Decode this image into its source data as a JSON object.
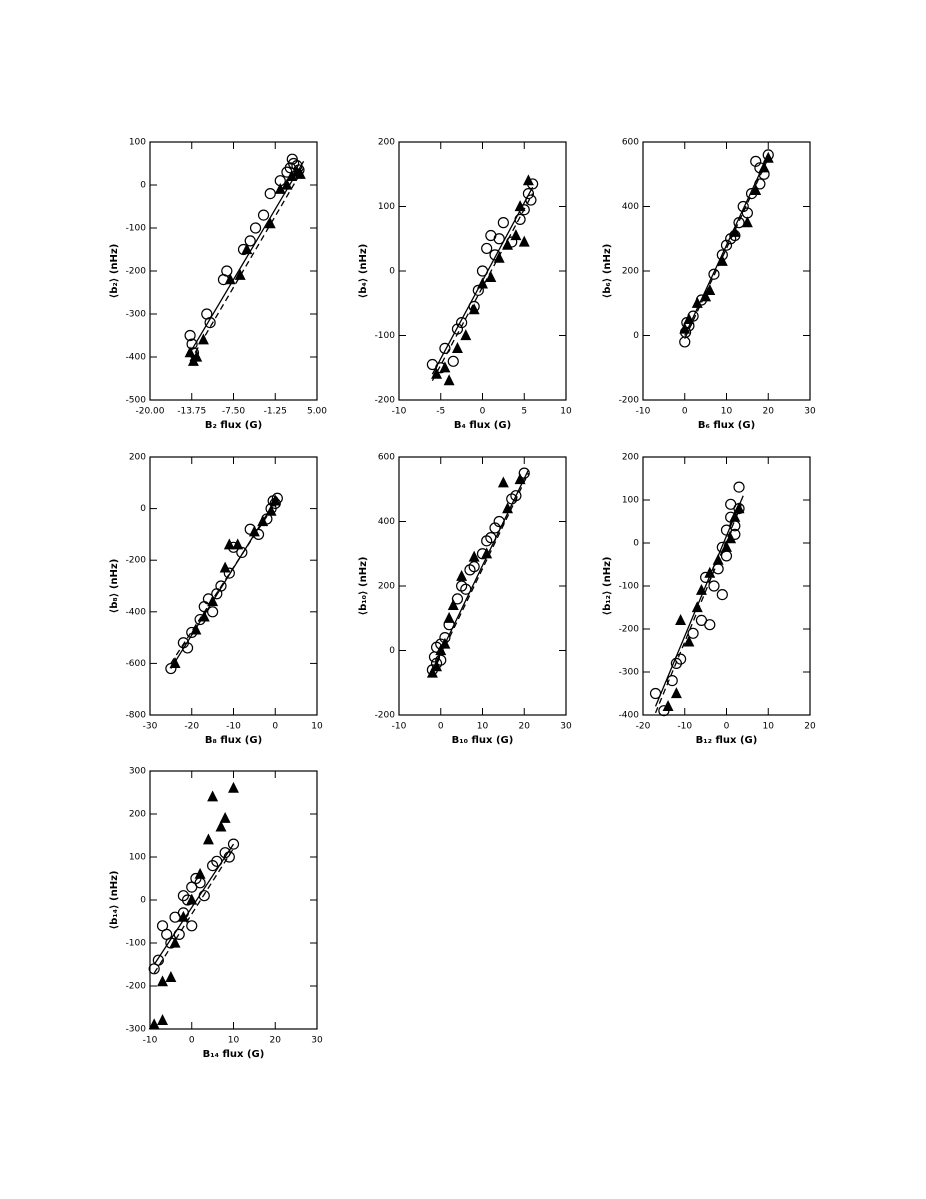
{
  "chart_data": [
    {
      "type": "scatter",
      "xlabel": "B₂ flux (G)",
      "ylabel": "⟨b₂⟩ (nHz)",
      "color": "#000000",
      "xlim": [
        -20,
        5
      ],
      "ylim": [
        -500,
        100
      ],
      "xticks": [
        {
          "value": -20,
          "label": "-20.00"
        },
        {
          "value": -13.75,
          "label": "-13.75"
        },
        {
          "value": -7.5,
          "label": "-7.50"
        },
        {
          "value": -1.25,
          "label": "-1.25"
        },
        {
          "value": 5,
          "label": "5.00"
        }
      ],
      "yticks": [
        -500,
        -400,
        -300,
        -200,
        -100,
        0,
        100
      ],
      "series": [
        {
          "marker": "circle",
          "x": [
            -14,
            -13.7,
            -13.5,
            -11.5,
            -11,
            -9,
            -8.5,
            -6,
            -5,
            -4.2,
            -3,
            -2,
            -0.5,
            0.5,
            1,
            1.5,
            2,
            1.3,
            2.3
          ],
          "values": [
            -350,
            -370,
            -390,
            -300,
            -320,
            -220,
            -200,
            -150,
            -130,
            -100,
            -70,
            -20,
            10,
            30,
            40,
            50,
            45,
            60,
            35
          ]
        },
        {
          "marker": "triangle",
          "x": [
            -14,
            -13.5,
            -13,
            -12,
            -8,
            -6.5,
            -5.5,
            -2,
            -0.5,
            0.5,
            1.2,
            2,
            2.5
          ],
          "values": [
            -390,
            -410,
            -400,
            -360,
            -220,
            -210,
            -150,
            -90,
            -10,
            0,
            20,
            30,
            25
          ]
        }
      ],
      "fit_lines": [
        {
          "style": "solid",
          "x": [
            -14,
            3
          ],
          "y": [
            -390,
            55
          ]
        },
        {
          "style": "dashed",
          "x": [
            -14,
            3
          ],
          "y": [
            -410,
            40
          ]
        }
      ]
    },
    {
      "type": "scatter",
      "xlabel": "B₄ flux (G)",
      "ylabel": "⟨b₄⟩ (nHz)",
      "color": "#000000",
      "xlim": [
        -10,
        10
      ],
      "ylim": [
        -200,
        200
      ],
      "xticks": [
        -10,
        -5,
        0,
        5,
        10
      ],
      "yticks": [
        -200,
        -100,
        0,
        100,
        200
      ],
      "series": [
        {
          "marker": "circle",
          "x": [
            -6,
            -5,
            -4.5,
            -3.5,
            -3,
            -2.5,
            -1,
            -0.5,
            0,
            0.5,
            1,
            1.5,
            2,
            2.5,
            3.5,
            4.5,
            5,
            5.5,
            6,
            5.8
          ],
          "values": [
            -145,
            -150,
            -120,
            -140,
            -90,
            -80,
            -55,
            -30,
            0,
            35,
            55,
            25,
            50,
            75,
            45,
            80,
            95,
            120,
            135,
            110
          ]
        },
        {
          "marker": "triangle",
          "x": [
            -5.5,
            -4.5,
            -4,
            -3,
            -2,
            -1,
            0,
            1,
            2,
            3,
            4,
            5,
            4.5,
            5.5
          ],
          "values": [
            -160,
            -150,
            -170,
            -120,
            -100,
            -60,
            -20,
            -10,
            20,
            40,
            55,
            45,
            100,
            140
          ]
        }
      ],
      "fit_lines": [
        {
          "style": "solid",
          "x": [
            -6,
            6
          ],
          "y": [
            -160,
            130
          ]
        },
        {
          "style": "dashed",
          "x": [
            -6,
            6
          ],
          "y": [
            -170,
            120
          ]
        }
      ]
    },
    {
      "type": "scatter",
      "xlabel": "B₆ flux (G)",
      "ylabel": "⟨b₆⟩ (nHz)",
      "color": "#000000",
      "xlim": [
        -10,
        30
      ],
      "ylim": [
        -200,
        600
      ],
      "xticks": [
        -10,
        0,
        10,
        20,
        30
      ],
      "yticks": [
        -200,
        0,
        200,
        400,
        600
      ],
      "series": [
        {
          "marker": "circle",
          "x": [
            0,
            0.2,
            0.5,
            1,
            2,
            4,
            7,
            9,
            10,
            11,
            12,
            13,
            14,
            15,
            16,
            17,
            18,
            19,
            20,
            18
          ],
          "values": [
            -20,
            10,
            40,
            30,
            60,
            110,
            190,
            250,
            280,
            300,
            310,
            350,
            400,
            380,
            440,
            540,
            470,
            500,
            560,
            520
          ]
        },
        {
          "marker": "triangle",
          "x": [
            0,
            1,
            3,
            5,
            6,
            9,
            12,
            15,
            17,
            19,
            20
          ],
          "values": [
            20,
            50,
            100,
            120,
            140,
            230,
            320,
            350,
            450,
            520,
            550
          ]
        }
      ],
      "fit_lines": [
        {
          "style": "solid",
          "x": [
            0,
            20
          ],
          "y": [
            0,
            560
          ]
        },
        {
          "style": "dashed",
          "x": [
            0,
            20
          ],
          "y": [
            -10,
            550
          ]
        }
      ]
    },
    {
      "type": "scatter",
      "xlabel": "B₈ flux (G)",
      "ylabel": "⟨b₈⟩ (nHz)",
      "color": "#000000",
      "xlim": [
        -30,
        10
      ],
      "ylim": [
        -800,
        200
      ],
      "xticks": [
        -30,
        -20,
        -10,
        0,
        10
      ],
      "yticks": [
        -800,
        -600,
        -400,
        -200,
        0,
        200
      ],
      "series": [
        {
          "marker": "circle",
          "x": [
            -25,
            -22,
            -21,
            -20,
            -18,
            -17,
            -16,
            -15,
            -14,
            -13,
            -11,
            -10,
            -8,
            -6,
            -4,
            -2,
            -1,
            0,
            0.5,
            -0.5
          ],
          "values": [
            -620,
            -520,
            -540,
            -480,
            -430,
            -380,
            -350,
            -400,
            -330,
            -300,
            -250,
            -150,
            -170,
            -80,
            -100,
            -40,
            0,
            20,
            40,
            30
          ]
        },
        {
          "marker": "triangle",
          "x": [
            -24,
            -19,
            -17,
            -15,
            -12,
            -11,
            -9,
            -5,
            -3,
            -1,
            0
          ],
          "values": [
            -600,
            -470,
            -420,
            -360,
            -230,
            -140,
            -140,
            -90,
            -50,
            -10,
            30
          ]
        }
      ],
      "fit_lines": [
        {
          "style": "solid",
          "x": [
            -25,
            0
          ],
          "y": [
            -620,
            30
          ]
        },
        {
          "style": "dashed",
          "x": [
            -25,
            0
          ],
          "y": [
            -600,
            20
          ]
        }
      ]
    },
    {
      "type": "scatter",
      "xlabel": "B₁₀ flux (G)",
      "ylabel": "⟨b₁₀⟩ (nHz)",
      "color": "#000000",
      "xlim": [
        -10,
        30
      ],
      "ylim": [
        -200,
        600
      ],
      "xticks": [
        -10,
        0,
        10,
        20,
        30
      ],
      "yticks": [
        -200,
        0,
        200,
        400,
        600
      ],
      "series": [
        {
          "marker": "circle",
          "x": [
            -2,
            -1.5,
            -1,
            -1,
            0,
            0,
            1,
            2,
            4,
            5,
            6,
            7,
            8,
            10,
            11,
            12,
            13,
            14,
            17,
            18,
            20
          ],
          "values": [
            -60,
            -20,
            -40,
            10,
            -30,
            20,
            40,
            80,
            160,
            200,
            190,
            250,
            260,
            300,
            340,
            350,
            380,
            400,
            470,
            480,
            550
          ]
        },
        {
          "marker": "triangle",
          "x": [
            -2,
            -1,
            0,
            1,
            2,
            3,
            5,
            8,
            11,
            15,
            16,
            19
          ],
          "values": [
            -70,
            -50,
            0,
            20,
            100,
            140,
            230,
            290,
            300,
            520,
            440,
            530
          ]
        }
      ],
      "fit_lines": [
        {
          "style": "solid",
          "x": [
            -2,
            21
          ],
          "y": [
            -60,
            560
          ]
        },
        {
          "style": "dashed",
          "x": [
            -2,
            21
          ],
          "y": [
            -70,
            550
          ]
        }
      ]
    },
    {
      "type": "scatter",
      "xlabel": "B₁₂ flux (G)",
      "ylabel": "⟨b₁₂⟩ (nHz)",
      "color": "#000000",
      "xlim": [
        -20,
        20
      ],
      "ylim": [
        -400,
        200
      ],
      "xticks": [
        -20,
        -10,
        0,
        10,
        20
      ],
      "yticks": [
        -400,
        -300,
        -200,
        -100,
        0,
        100,
        200
      ],
      "series": [
        {
          "marker": "circle",
          "x": [
            -17,
            -15,
            -13,
            -12,
            -11,
            -8,
            -6,
            -5,
            -4,
            -3,
            -2,
            -1,
            -1,
            0,
            0,
            1,
            1,
            2,
            2,
            3,
            3
          ],
          "values": [
            -350,
            -390,
            -320,
            -280,
            -270,
            -210,
            -180,
            -80,
            -190,
            -100,
            -60,
            -120,
            -10,
            30,
            -30,
            90,
            60,
            40,
            20,
            130,
            80
          ]
        },
        {
          "marker": "triangle",
          "x": [
            -14,
            -12,
            -11,
            -9,
            -7,
            -6,
            -4,
            -2,
            0,
            1,
            2,
            3
          ],
          "values": [
            -380,
            -350,
            -180,
            -230,
            -150,
            -110,
            -70,
            -40,
            -10,
            10,
            60,
            80
          ]
        }
      ],
      "fit_lines": [
        {
          "style": "solid",
          "x": [
            -17,
            4
          ],
          "y": [
            -380,
            110
          ]
        },
        {
          "style": "dashed",
          "x": [
            -17,
            4
          ],
          "y": [
            -395,
            100
          ]
        }
      ]
    },
    {
      "type": "scatter",
      "xlabel": "B₁₄ flux (G)",
      "ylabel": "⟨b₁₄⟩ (nHz)",
      "color": "#000000",
      "xlim": [
        -10,
        30
      ],
      "ylim": [
        -300,
        300
      ],
      "xticks": [
        -10,
        0,
        10,
        20,
        30
      ],
      "yticks": [
        -300,
        -200,
        -100,
        0,
        100,
        200,
        300
      ],
      "series": [
        {
          "marker": "circle",
          "x": [
            -9,
            -8,
            -7,
            -6,
            -5,
            -4,
            -3,
            -2,
            -2,
            -1,
            0,
            0,
            1,
            2,
            3,
            5,
            6,
            8,
            10,
            9
          ],
          "values": [
            -160,
            -140,
            -60,
            -80,
            -100,
            -40,
            -80,
            10,
            -30,
            0,
            -60,
            30,
            50,
            40,
            10,
            80,
            90,
            110,
            130,
            100
          ]
        },
        {
          "marker": "triangle",
          "x": [
            -9,
            -7,
            -7,
            -5,
            -4,
            -2,
            0,
            2,
            4,
            5,
            7,
            8,
            10
          ],
          "values": [
            -290,
            -280,
            -190,
            -180,
            -100,
            -40,
            0,
            60,
            140,
            240,
            170,
            190,
            260
          ]
        }
      ],
      "fit_lines": [
        {
          "style": "solid",
          "x": [
            -9,
            10
          ],
          "y": [
            -150,
            130
          ]
        },
        {
          "style": "dashed",
          "x": [
            -9,
            10
          ],
          "y": [
            -170,
            120
          ]
        }
      ]
    }
  ]
}
